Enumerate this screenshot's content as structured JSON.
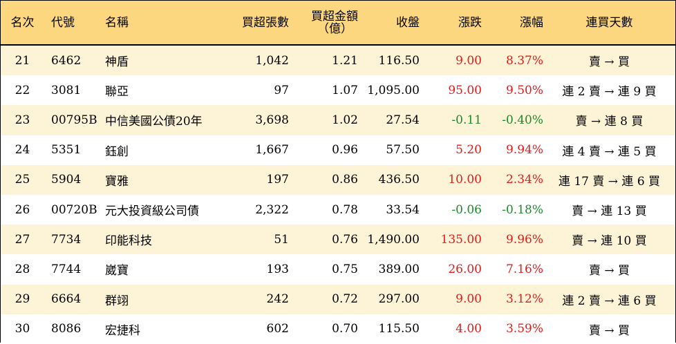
{
  "headers": {
    "rank": "名次",
    "code": "代號",
    "name": "名稱",
    "buy_volume": "買超張數",
    "buy_amount_line1": "買超金額",
    "buy_amount_line2": "（億）",
    "close": "收盤",
    "change": "漲跌",
    "pct": "漲幅",
    "days": "連買天數"
  },
  "colors": {
    "header_bg": "#fcd77f",
    "stripe": "#fdf3d6",
    "up": "#e31b1b",
    "down": "#1a8a2a"
  },
  "rows": [
    {
      "rank": "21",
      "code": "6462",
      "name": "神盾",
      "vol": "1,042",
      "amt": "1.21",
      "close": "116.50",
      "chg": "9.00",
      "pct": "8.37%",
      "days": "賣 → 買",
      "dir": "up"
    },
    {
      "rank": "22",
      "code": "3081",
      "name": "聯亞",
      "vol": "97",
      "amt": "1.07",
      "close": "1,095.00",
      "chg": "95.00",
      "pct": "9.50%",
      "days": "連 2 賣 → 連 9 買",
      "dir": "up"
    },
    {
      "rank": "23",
      "code": "00795B",
      "name": "中信美國公債20年",
      "vol": "3,698",
      "amt": "1.02",
      "close": "27.54",
      "chg": "-0.11",
      "pct": "-0.40%",
      "days": "賣 → 連 8 買",
      "dir": "down"
    },
    {
      "rank": "24",
      "code": "5351",
      "name": "鈺創",
      "vol": "1,667",
      "amt": "0.96",
      "close": "57.50",
      "chg": "5.20",
      "pct": "9.94%",
      "days": "連 4 賣 → 連 5 買",
      "dir": "up"
    },
    {
      "rank": "25",
      "code": "5904",
      "name": "寶雅",
      "vol": "197",
      "amt": "0.86",
      "close": "436.50",
      "chg": "10.00",
      "pct": "2.34%",
      "days": "連 17 賣 → 連 6 買",
      "dir": "up"
    },
    {
      "rank": "26",
      "code": "00720B",
      "name": "元大投資級公司債",
      "vol": "2,322",
      "amt": "0.78",
      "close": "33.54",
      "chg": "-0.06",
      "pct": "-0.18%",
      "days": "賣 → 連 13 買",
      "dir": "down"
    },
    {
      "rank": "27",
      "code": "7734",
      "name": "印能科技",
      "vol": "51",
      "amt": "0.76",
      "close": "1,490.00",
      "chg": "135.00",
      "pct": "9.96%",
      "days": "賣 → 連 10 買",
      "dir": "up"
    },
    {
      "rank": "28",
      "code": "7744",
      "name": "崴寶",
      "vol": "193",
      "amt": "0.75",
      "close": "389.00",
      "chg": "26.00",
      "pct": "7.16%",
      "days": "賣 → 買",
      "dir": "up"
    },
    {
      "rank": "29",
      "code": "6664",
      "name": "群翊",
      "vol": "242",
      "amt": "0.72",
      "close": "297.00",
      "chg": "9.00",
      "pct": "3.12%",
      "days": "連 2 賣 → 連 6 買",
      "dir": "up"
    },
    {
      "rank": "30",
      "code": "8086",
      "name": "宏捷科",
      "vol": "602",
      "amt": "0.70",
      "close": "115.50",
      "chg": "4.00",
      "pct": "3.59%",
      "days": "賣 → 買",
      "dir": "up"
    }
  ]
}
